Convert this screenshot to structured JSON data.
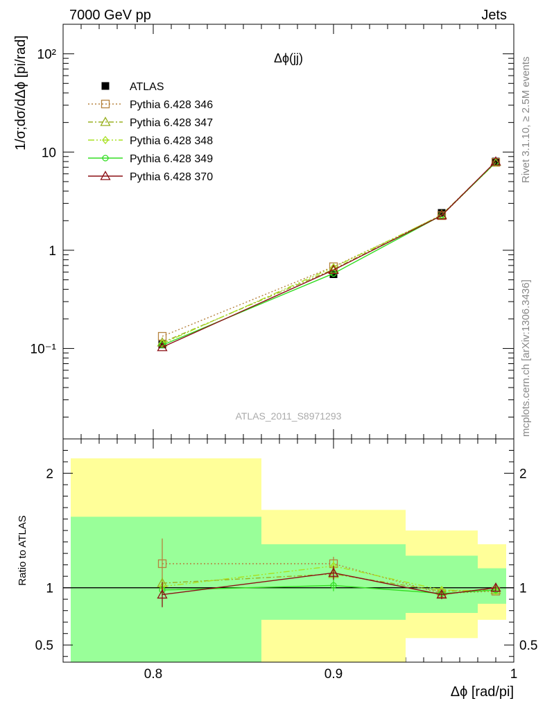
{
  "header": {
    "left": "7000 GeV pp",
    "right": "Jets",
    "panel_title": "Δϕ(jj)",
    "watermark": "ATLAS_2011_S8971293",
    "side_top": "Rivet 3.1.10, ≥ 2.5M events",
    "side_bottom": "mcplots.cern.ch [arXiv:1306.3436]"
  },
  "chart_data": [
    {
      "type": "line",
      "name": "main",
      "ylabel": "1/σ;dσ/dΔϕ [pi/rad]",
      "yscale": "log",
      "ylim": [
        0.012,
        200
      ],
      "xlim": [
        0.75,
        1.0
      ],
      "ytick_labels": [
        "10⁻¹",
        "1",
        "10",
        "10²"
      ],
      "ytick_values": [
        0.1,
        1,
        10,
        100
      ],
      "x": [
        0.805,
        0.9,
        0.96,
        0.99
      ],
      "series": [
        {
          "name": "ATLAS",
          "values": [
            0.11,
            0.57,
            2.4,
            8.0
          ],
          "color": "#000000",
          "marker": "square-filled",
          "dash": ""
        },
        {
          "name": "Pythia 6.428 346",
          "values": [
            0.133,
            0.68,
            2.25,
            7.85
          ],
          "color": "#b5823d",
          "marker": "square",
          "dash": "2,3"
        },
        {
          "name": "Pythia 6.428 347",
          "values": [
            0.115,
            0.64,
            2.3,
            7.9
          ],
          "color": "#99b020",
          "marker": "triangle",
          "dash": "7,3,2,3"
        },
        {
          "name": "Pythia 6.428 348",
          "values": [
            0.112,
            0.67,
            2.28,
            7.8
          ],
          "color": "#a8e020",
          "marker": "diamond",
          "dash": "9,3,2,3,2,3"
        },
        {
          "name": "Pythia 6.428 349",
          "values": [
            0.108,
            0.58,
            2.27,
            7.85
          ],
          "color": "#33dd22",
          "marker": "circle",
          "dash": ""
        },
        {
          "name": "Pythia 6.428 370",
          "values": [
            0.103,
            0.63,
            2.26,
            8.0
          ],
          "color": "#8b0e14",
          "marker": "triangle",
          "dash": ""
        }
      ]
    },
    {
      "type": "line",
      "name": "ratio",
      "ylabel": "Ratio to ATLAS",
      "xlabel": "Δϕ [rad/pi]",
      "ylim": [
        0.35,
        2.3
      ],
      "xlim": [
        0.75,
        1.0
      ],
      "ytick_labels": [
        "0.5",
        "1",
        "2"
      ],
      "ytick_values": [
        0.5,
        1,
        2
      ],
      "xtick_labels": [
        "0.8",
        "0.9",
        "1"
      ],
      "xtick_values": [
        0.8,
        0.9,
        1.0
      ],
      "bands": [
        {
          "x0": 0.75,
          "x1": 0.86,
          "outer": [
            0.35,
            2.13
          ],
          "inner": [
            0.35,
            1.62
          ]
        },
        {
          "x0": 0.86,
          "x1": 0.94,
          "outer": [
            0.35,
            1.68
          ],
          "inner": [
            0.72,
            1.38
          ]
        },
        {
          "x0": 0.94,
          "x1": 0.98,
          "outer": [
            0.56,
            1.5
          ],
          "inner": [
            0.78,
            1.28
          ]
        },
        {
          "x0": 0.98,
          "x1": 1.0,
          "outer": [
            0.72,
            1.38
          ],
          "inner": [
            0.86,
            1.17
          ]
        }
      ],
      "x": [
        0.805,
        0.9,
        0.96,
        0.99
      ],
      "series": [
        {
          "name": "Pythia 6.428 346",
          "values": [
            1.21,
            1.21,
            0.95,
            0.97
          ],
          "errors": [
            0.22,
            0.06,
            0.04,
            0.03
          ],
          "color": "#b5823d",
          "marker": "square",
          "dash": "2,3"
        },
        {
          "name": "Pythia 6.428 347",
          "values": [
            1.04,
            1.12,
            0.97,
            0.98
          ],
          "errors": [
            0.05,
            0.05,
            0.03,
            0.03
          ],
          "color": "#99b020",
          "marker": "triangle",
          "dash": "7,3,2,3"
        },
        {
          "name": "Pythia 6.428 348",
          "values": [
            1.01,
            1.19,
            0.98,
            0.97
          ],
          "errors": [
            0.05,
            0.05,
            0.03,
            0.03
          ],
          "color": "#a8e020",
          "marker": "diamond",
          "dash": "9,3,2,3,2,3"
        },
        {
          "name": "Pythia 6.428 349",
          "values": [
            0.98,
            1.02,
            0.95,
            0.98
          ],
          "errors": [
            0.05,
            0.05,
            0.03,
            0.03
          ],
          "color": "#33dd22",
          "marker": "circle",
          "dash": ""
        },
        {
          "name": "Pythia 6.428 370",
          "values": [
            0.94,
            1.13,
            0.94,
            1.0
          ],
          "errors": [
            0.11,
            0.06,
            0.04,
            0.03
          ],
          "color": "#8b0e14",
          "marker": "triangle",
          "dash": ""
        }
      ]
    }
  ]
}
